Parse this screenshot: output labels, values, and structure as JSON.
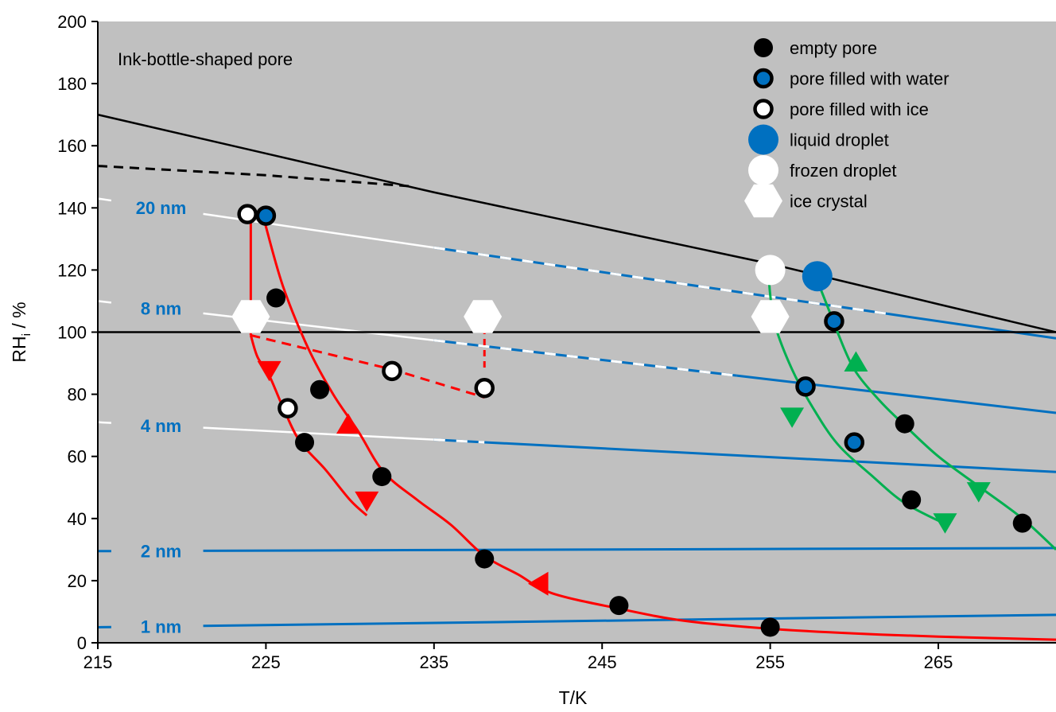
{
  "chart_data": {
    "type": "scatter",
    "annotation": "Ink-bottle-shaped pore",
    "xlabel": "T/K",
    "ylabel_main": "RH",
    "ylabel_sub": "i",
    "ylabel_unit": " / %",
    "xlim": [
      215,
      272
    ],
    "ylim": [
      0,
      200
    ],
    "xticks": [
      215,
      225,
      235,
      245,
      255,
      265
    ],
    "yticks": [
      0,
      20,
      40,
      60,
      80,
      100,
      120,
      140,
      160,
      180,
      200
    ],
    "grid": false,
    "legend_position": "top-right",
    "colors": {
      "background": "#c0c0c0",
      "pore_blue": "#0070c0",
      "red": "#ff0000",
      "green": "#00b050",
      "black": "#000000",
      "white": "#ffffff"
    },
    "legend": [
      {
        "marker": "empty-pore",
        "label": "empty pore"
      },
      {
        "marker": "pore-water",
        "label": "pore filled with water"
      },
      {
        "marker": "pore-ice",
        "label": "pore filled with ice"
      },
      {
        "marker": "liquid-droplet",
        "label": "liquid droplet"
      },
      {
        "marker": "frozen-droplet",
        "label": "frozen droplet"
      },
      {
        "marker": "ice-crystal",
        "label": "ice crystal"
      }
    ],
    "pore_lines": [
      {
        "label": "20 nm",
        "left": 143,
        "right": 98,
        "white_until": 235,
        "dash_until": 262
      },
      {
        "label": "8 nm",
        "left": 110,
        "right": 74,
        "white_until": 235,
        "dash_until": 253
      },
      {
        "label": "4 nm",
        "left": 71,
        "right": 55,
        "white_until": 235,
        "dash_until": 238
      },
      {
        "label": "2 nm",
        "left": 29.5,
        "right": 30.5,
        "white_until": null,
        "dash_until": null
      },
      {
        "label": "1 nm",
        "left": 5,
        "right": 9,
        "white_until": null,
        "dash_until": null
      }
    ],
    "black_lines": {
      "ice_saturation": 100,
      "water_saturation": [
        [
          215,
          170
        ],
        [
          225,
          157.5
        ],
        [
          235,
          145
        ],
        [
          245,
          133.5
        ],
        [
          255,
          122
        ],
        [
          265,
          109
        ],
        [
          272,
          100
        ]
      ],
      "dashed": [
        [
          215,
          153.5
        ],
        [
          225,
          150.5
        ],
        [
          233.5,
          147
        ]
      ]
    },
    "red_curves": {
      "solid_upper": [
        [
          224.9,
          136
        ],
        [
          226,
          115
        ],
        [
          227.5,
          95
        ],
        [
          229,
          80
        ],
        [
          230.5,
          68
        ],
        [
          232,
          55
        ],
        [
          234,
          46
        ],
        [
          236,
          38
        ],
        [
          238,
          28
        ],
        [
          240,
          22
        ],
        [
          242,
          16
        ],
        [
          246,
          11
        ],
        [
          250,
          7
        ],
        [
          255,
          4.5
        ],
        [
          260,
          3
        ],
        [
          265,
          2
        ],
        [
          272,
          1
        ]
      ],
      "solid_lower": [
        [
          224.1,
          99
        ],
        [
          224.5,
          92
        ],
        [
          225.2,
          86
        ],
        [
          226,
          76
        ],
        [
          227,
          65
        ],
        [
          228.5,
          56
        ],
        [
          230,
          46
        ],
        [
          231,
          41
        ]
      ],
      "vertical": [
        [
          224.1,
          137
        ],
        [
          224.1,
          99
        ]
      ],
      "dashed_ice": [
        [
          224.1,
          99
        ],
        [
          232.5,
          88
        ],
        [
          238,
          79
        ]
      ],
      "dashed_vertical": [
        [
          238,
          105
        ],
        [
          238,
          88
        ]
      ],
      "arrows": [
        {
          "x": 225.2,
          "y": 88,
          "dir": "down"
        },
        {
          "x": 229.9,
          "y": 70,
          "dir": "up"
        },
        {
          "x": 231,
          "y": 46,
          "dir": "down"
        },
        {
          "x": 241.3,
          "y": 19,
          "dir": "left"
        }
      ]
    },
    "green_curves": {
      "left": [
        [
          254.9,
          120
        ],
        [
          255,
          112
        ],
        [
          255.3,
          102
        ],
        [
          256.3,
          88
        ],
        [
          257.5,
          76
        ],
        [
          259,
          64
        ],
        [
          261,
          54
        ],
        [
          263,
          45
        ],
        [
          265.5,
          38
        ]
      ],
      "right": [
        [
          257.7,
          118
        ],
        [
          258.5,
          107
        ],
        [
          259,
          100
        ],
        [
          260,
          88
        ],
        [
          261.5,
          78
        ],
        [
          263,
          70
        ],
        [
          265,
          60
        ],
        [
          267.5,
          50
        ],
        [
          270,
          40
        ],
        [
          272,
          30
        ]
      ],
      "arrows": [
        {
          "x": 260.1,
          "y": 90,
          "dir": "up"
        },
        {
          "x": 256.3,
          "y": 73,
          "dir": "down"
        },
        {
          "x": 267.4,
          "y": 49,
          "dir": "down"
        },
        {
          "x": 265.4,
          "y": 39,
          "dir": "down"
        }
      ]
    },
    "points": {
      "empty_pore": [
        [
          225.6,
          111
        ],
        [
          228.2,
          81.5
        ],
        [
          227.3,
          64.5
        ],
        [
          231.9,
          53.5
        ],
        [
          238,
          27
        ],
        [
          246,
          12
        ],
        [
          255,
          5
        ],
        [
          263,
          70.5
        ],
        [
          263.4,
          46
        ],
        [
          270,
          38.5
        ]
      ],
      "pore_water": [
        [
          225,
          137.5
        ],
        [
          258.8,
          103.5
        ],
        [
          257.1,
          82.5
        ],
        [
          260,
          64.5
        ]
      ],
      "pore_ice": [
        [
          223.9,
          138
        ],
        [
          232.5,
          87.5
        ],
        [
          238,
          82
        ],
        [
          226.3,
          75.5
        ]
      ],
      "liquid_droplet": [
        [
          257.8,
          118
        ]
      ],
      "frozen_droplet": [
        [
          255,
          120
        ]
      ],
      "ice_crystal": [
        [
          224.1,
          105
        ],
        [
          237.9,
          105
        ],
        [
          255,
          105
        ]
      ]
    }
  }
}
